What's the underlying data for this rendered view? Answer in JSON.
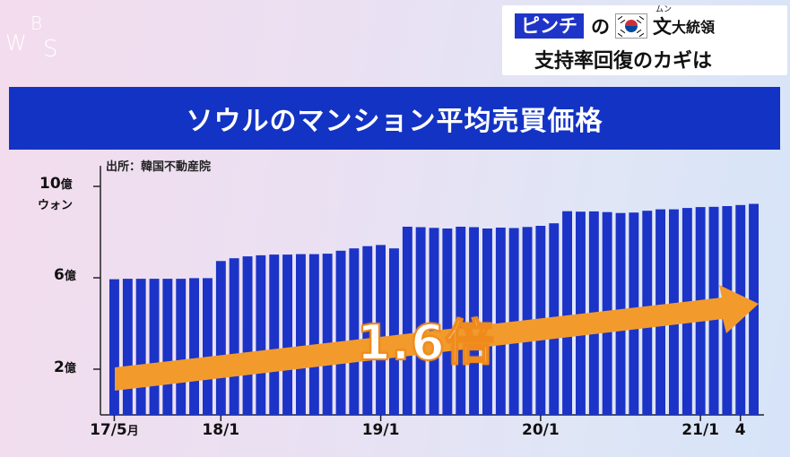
{
  "logo": {
    "letters": [
      "W",
      "B",
      "S"
    ]
  },
  "headline": {
    "badge": "ピンチ",
    "particle": "の",
    "flag_icon": "south-korea-flag-icon",
    "name": "文",
    "name_ruby": "ムン",
    "title": "大統領",
    "line2": "支持率回復のカギは"
  },
  "chart_data": {
    "type": "bar",
    "title": "ソウルのマンション平均売買価格",
    "source": "出所：韓国不動産院",
    "ylabel": "ウォン",
    "y_tick_labels": [
      {
        "value": 10,
        "label": "10",
        "unit": "億"
      },
      {
        "value": 6,
        "label": "6",
        "unit": "億"
      },
      {
        "value": 2,
        "label": "2",
        "unit": "億"
      }
    ],
    "ylim": [
      0,
      10
    ],
    "x_tick_labels": [
      {
        "index": 0,
        "label": "17/5",
        "unit": "月"
      },
      {
        "index": 8,
        "label": "18/1",
        "unit": ""
      },
      {
        "index": 20,
        "label": "19/1",
        "unit": ""
      },
      {
        "index": 32,
        "label": "20/1",
        "unit": ""
      },
      {
        "index": 44,
        "label": "21/1",
        "unit": ""
      },
      {
        "index": 47,
        "label": "4",
        "unit": ""
      }
    ],
    "series": [
      {
        "values": [
          5.7,
          5.72,
          5.72,
          5.72,
          5.72,
          5.72,
          5.75,
          5.75,
          6.5,
          6.62,
          6.7,
          6.75,
          6.78,
          6.78,
          6.8,
          6.8,
          6.82,
          6.95,
          7.05,
          7.15,
          7.2,
          7.05,
          8.0,
          7.98,
          7.95,
          7.92,
          8.0,
          7.98,
          7.92,
          7.96,
          7.94,
          7.99,
          8.04,
          8.15,
          8.68,
          8.66,
          8.67,
          8.64,
          8.6,
          8.62,
          8.7,
          8.76,
          8.76,
          8.82,
          8.86,
          8.87,
          8.9,
          8.95,
          9.0
        ],
        "color": "#1b33c6"
      }
    ],
    "grid": false,
    "annotation": {
      "text": "1.6倍",
      "arrow_color": "#f29b2c"
    }
  }
}
